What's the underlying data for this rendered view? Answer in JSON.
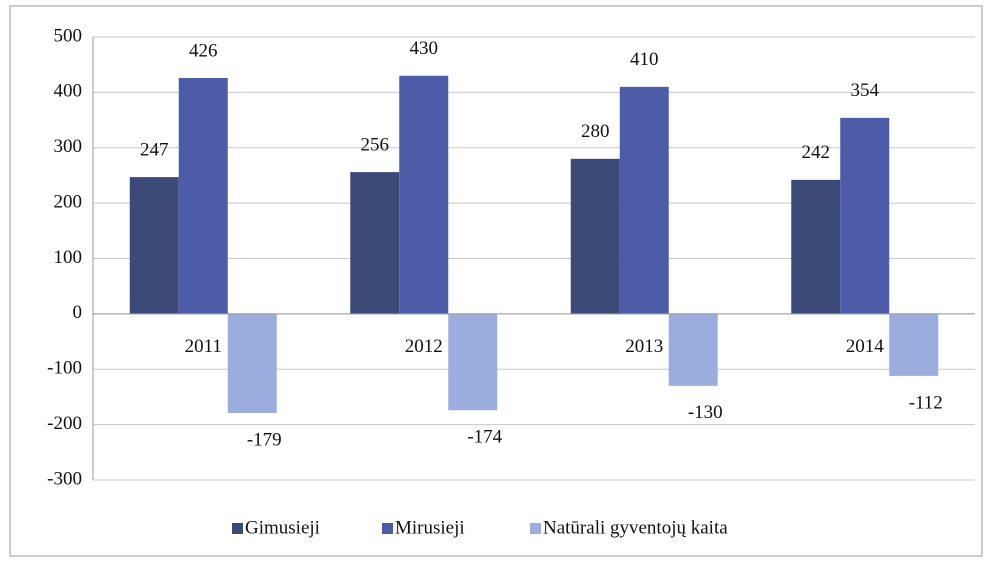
{
  "chart_data": {
    "type": "bar",
    "categories": [
      "2011",
      "2012",
      "2013",
      "2014"
    ],
    "series": [
      {
        "name": "Gimusieji",
        "color": "#3c4a78",
        "values": [
          247,
          256,
          280,
          242
        ]
      },
      {
        "name": "Mirusieji",
        "color": "#4d5ca8",
        "values": [
          426,
          430,
          410,
          354
        ]
      },
      {
        "name": "Natūrali gyventojų kaita",
        "color": "#9badde",
        "values": [
          -179,
          -174,
          -130,
          -112
        ]
      }
    ],
    "ylim": [
      -300,
      500
    ],
    "yticks": [
      -300,
      -200,
      -100,
      0,
      100,
      200,
      300,
      400,
      500
    ],
    "grid": true,
    "legend": "bottom"
  }
}
